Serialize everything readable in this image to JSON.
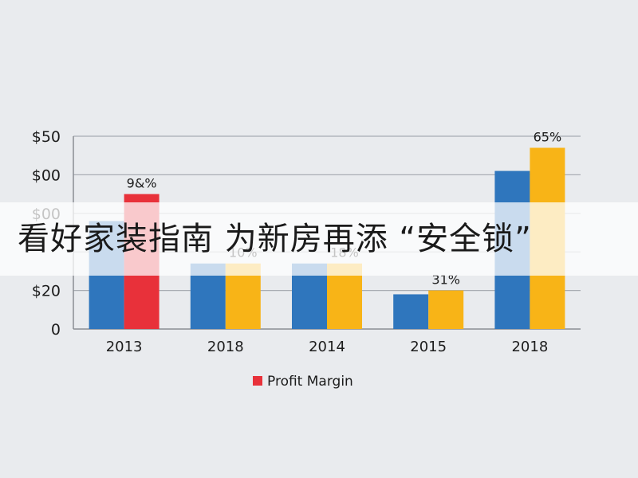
{
  "chart_data": {
    "type": "bar",
    "categories": [
      "2013",
      "2018",
      "2014",
      "2015",
      "2018"
    ],
    "series": [
      {
        "values": [
          28,
          17,
          17,
          9,
          41
        ],
        "color": "#2f76bd"
      },
      {
        "values": [
          35,
          17,
          17,
          10,
          47
        ],
        "color": "#f8b417",
        "highlight_index": 0,
        "highlight_color": "#e8313a"
      }
    ],
    "yticks": [
      "$50",
      "$00",
      "$00",
      "",
      "$20",
      "0"
    ],
    "ylim": [
      0,
      50
    ],
    "data_labels": [
      {
        "index": 0,
        "text": "9&%"
      },
      {
        "index": 1,
        "text": "10%"
      },
      {
        "index": 2,
        "text": "18%"
      },
      {
        "index": 3,
        "text": "31%"
      },
      {
        "index": 4,
        "text": "65%"
      }
    ],
    "legend": {
      "label": "Profit Margin",
      "color": "#e8313a",
      "position": "bottom"
    },
    "grid": true
  },
  "overlay": {
    "caption": "看好家装指南 为新房再添 “安全锁”"
  }
}
